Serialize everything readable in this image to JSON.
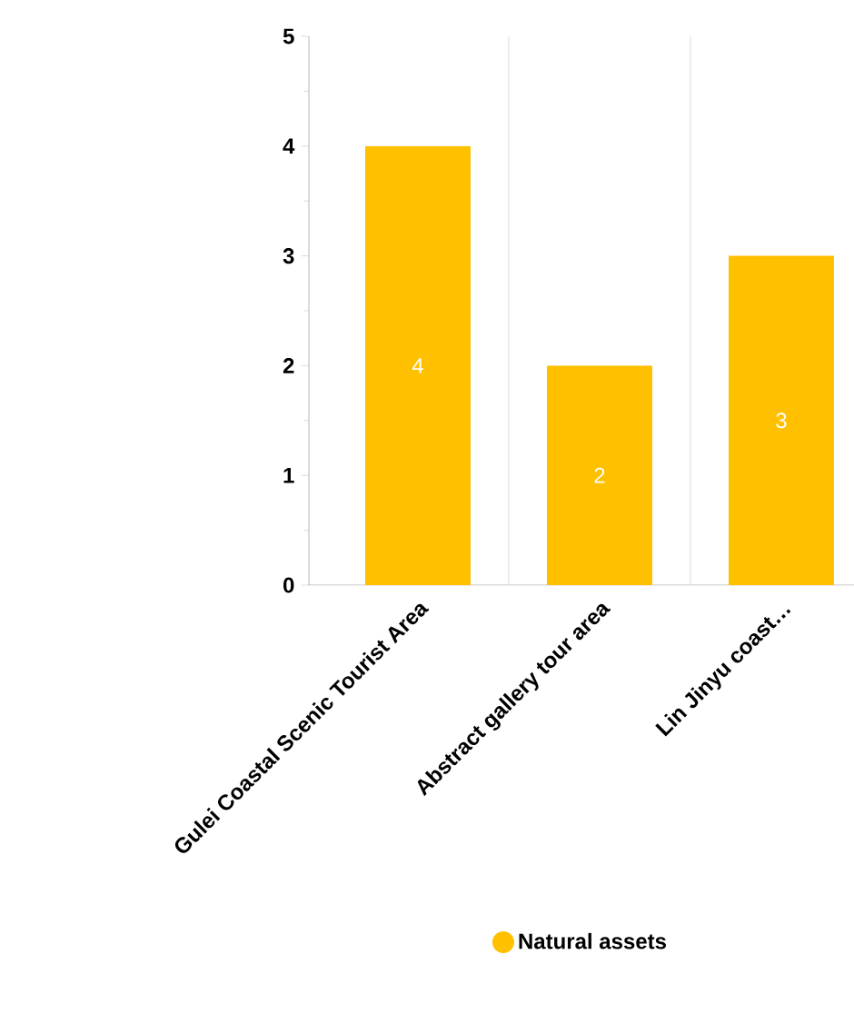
{
  "chart_data": {
    "type": "bar",
    "categories": [
      "Gulei Coastal Scenic Tourist Area",
      "Abstract gallery tour area",
      "Lin Jinyu coast…"
    ],
    "series": [
      {
        "name": "Natural assets",
        "color": "#ffc000",
        "values": [
          4,
          2,
          3
        ]
      }
    ],
    "ylim": [
      0,
      5
    ],
    "yticks": [
      0,
      1,
      2,
      3,
      4,
      5
    ],
    "grid": "x",
    "legend": "bottom",
    "data_labels": true
  }
}
